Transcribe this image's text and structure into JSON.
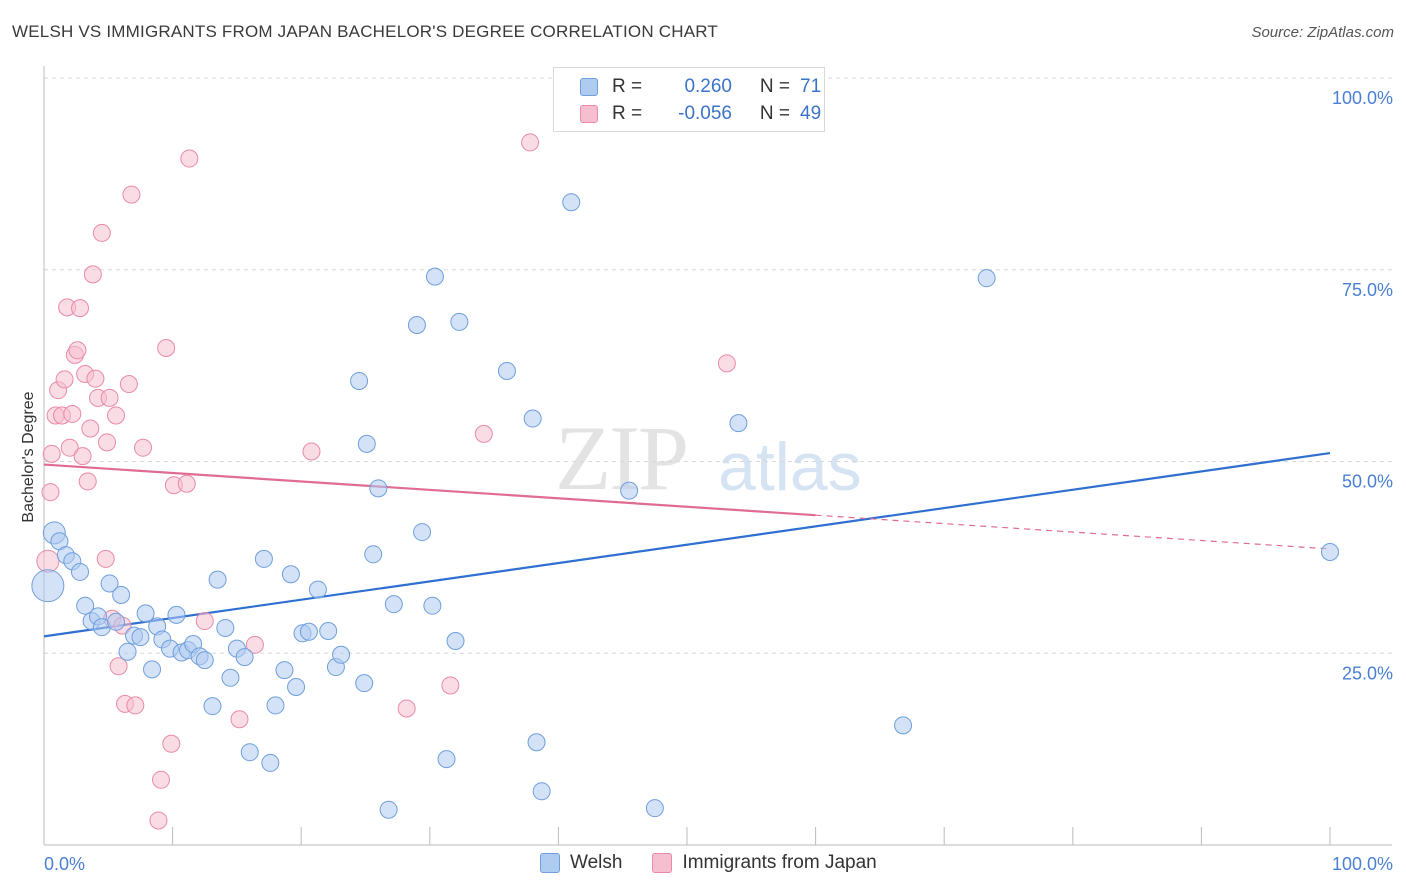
{
  "title": "WELSH VS IMMIGRANTS FROM JAPAN BACHELOR'S DEGREE CORRELATION CHART",
  "source": "Source: ZipAtlas.com",
  "watermark": {
    "zip": "ZIP",
    "atlas": "atlas"
  },
  "legend": {
    "rows": [
      {
        "r_label": "R =",
        "r_value": "0.260",
        "n_label": "N =",
        "n_value": "71"
      },
      {
        "r_label": "R =",
        "r_value": "-0.056",
        "n_label": "N =",
        "n_value": "49"
      }
    ]
  },
  "bottom_legend": {
    "welsh": "Welsh",
    "japan": "Immigrants from Japan"
  },
  "colors": {
    "welsh_fill": "#aecbf0",
    "welsh_stroke": "#6f9fdc",
    "welsh_line": "#2f6fd0",
    "japan_fill": "#f6bfd0",
    "japan_stroke": "#e98aa8",
    "japan_line": "#e06c93",
    "grid": "#d8d8d8",
    "axis_text": "#4a7fd4"
  },
  "chart_data": {
    "type": "scatter",
    "title": "WELSH VS IMMIGRANTS FROM JAPAN BACHELOR'S DEGREE CORRELATION CHART",
    "xlabel": "",
    "ylabel": "Bachelor's Degree",
    "xlim": [
      0,
      100
    ],
    "ylim": [
      0,
      100
    ],
    "x_tick_labels": [
      "0.0%",
      "100.0%"
    ],
    "y_tick_labels": [
      "25.0%",
      "50.0%",
      "75.0%",
      "100.0%"
    ],
    "y_ticks": [
      25,
      50,
      75,
      100
    ],
    "series": [
      {
        "name": "Welsh",
        "r": 0.26,
        "n": 71,
        "trend": {
          "x": [
            0,
            100
          ],
          "y": [
            27.2,
            51.1
          ]
        },
        "points": [
          {
            "x": 0.3,
            "y": 33.8,
            "s": 3
          },
          {
            "x": 0.8,
            "y": 40.7,
            "s": 2
          },
          {
            "x": 1.2,
            "y": 39.6,
            "s": 1
          },
          {
            "x": 1.7,
            "y": 37.8,
            "s": 1
          },
          {
            "x": 2.2,
            "y": 37.0,
            "s": 1
          },
          {
            "x": 2.8,
            "y": 35.6,
            "s": 1
          },
          {
            "x": 3.2,
            "y": 31.2,
            "s": 1
          },
          {
            "x": 3.7,
            "y": 29.2,
            "s": 1
          },
          {
            "x": 4.2,
            "y": 29.8,
            "s": 1
          },
          {
            "x": 4.5,
            "y": 28.4,
            "s": 1
          },
          {
            "x": 5.1,
            "y": 34.1,
            "s": 1
          },
          {
            "x": 5.6,
            "y": 29.1,
            "s": 1
          },
          {
            "x": 6.0,
            "y": 32.6,
            "s": 1
          },
          {
            "x": 6.5,
            "y": 25.2,
            "s": 1
          },
          {
            "x": 7.0,
            "y": 27.3,
            "s": 1
          },
          {
            "x": 7.5,
            "y": 27.1,
            "s": 1
          },
          {
            "x": 7.9,
            "y": 30.2,
            "s": 1
          },
          {
            "x": 8.4,
            "y": 22.9,
            "s": 1
          },
          {
            "x": 8.8,
            "y": 28.5,
            "s": 1
          },
          {
            "x": 9.2,
            "y": 26.8,
            "s": 1
          },
          {
            "x": 9.8,
            "y": 25.6,
            "s": 1
          },
          {
            "x": 10.3,
            "y": 30.0,
            "s": 1
          },
          {
            "x": 10.7,
            "y": 25.1,
            "s": 1
          },
          {
            "x": 11.2,
            "y": 25.4,
            "s": 1
          },
          {
            "x": 11.6,
            "y": 26.2,
            "s": 1
          },
          {
            "x": 12.1,
            "y": 24.6,
            "s": 1
          },
          {
            "x": 12.5,
            "y": 24.1,
            "s": 1
          },
          {
            "x": 13.1,
            "y": 18.1,
            "s": 1
          },
          {
            "x": 13.5,
            "y": 34.6,
            "s": 1
          },
          {
            "x": 14.1,
            "y": 28.3,
            "s": 1
          },
          {
            "x": 14.5,
            "y": 21.8,
            "s": 1
          },
          {
            "x": 15.0,
            "y": 25.6,
            "s": 1
          },
          {
            "x": 15.6,
            "y": 24.5,
            "s": 1
          },
          {
            "x": 16.0,
            "y": 12.1,
            "s": 1
          },
          {
            "x": 17.1,
            "y": 37.3,
            "s": 1
          },
          {
            "x": 17.6,
            "y": 10.7,
            "s": 1
          },
          {
            "x": 18.0,
            "y": 18.2,
            "s": 1
          },
          {
            "x": 18.7,
            "y": 22.8,
            "s": 1
          },
          {
            "x": 19.2,
            "y": 35.3,
            "s": 1
          },
          {
            "x": 19.6,
            "y": 20.6,
            "s": 1
          },
          {
            "x": 20.1,
            "y": 27.6,
            "s": 1
          },
          {
            "x": 20.6,
            "y": 27.8,
            "s": 1
          },
          {
            "x": 21.3,
            "y": 33.3,
            "s": 1
          },
          {
            "x": 22.1,
            "y": 27.9,
            "s": 1
          },
          {
            "x": 22.7,
            "y": 23.2,
            "s": 1
          },
          {
            "x": 23.1,
            "y": 24.8,
            "s": 1
          },
          {
            "x": 24.5,
            "y": 60.5,
            "s": 1
          },
          {
            "x": 24.9,
            "y": 21.1,
            "s": 1
          },
          {
            "x": 25.1,
            "y": 52.3,
            "s": 1
          },
          {
            "x": 25.6,
            "y": 37.9,
            "s": 1
          },
          {
            "x": 26.0,
            "y": 46.5,
            "s": 1
          },
          {
            "x": 26.8,
            "y": 4.6,
            "s": 1
          },
          {
            "x": 27.2,
            "y": 31.4,
            "s": 1
          },
          {
            "x": 29.0,
            "y": 67.8,
            "s": 1
          },
          {
            "x": 29.4,
            "y": 40.8,
            "s": 1
          },
          {
            "x": 30.2,
            "y": 31.2,
            "s": 1
          },
          {
            "x": 30.4,
            "y": 74.1,
            "s": 1
          },
          {
            "x": 31.3,
            "y": 11.2,
            "s": 1
          },
          {
            "x": 32.0,
            "y": 26.6,
            "s": 1
          },
          {
            "x": 32.3,
            "y": 68.2,
            "s": 1
          },
          {
            "x": 36.0,
            "y": 61.8,
            "s": 1
          },
          {
            "x": 38.0,
            "y": 55.6,
            "s": 1
          },
          {
            "x": 38.3,
            "y": 13.4,
            "s": 1
          },
          {
            "x": 38.7,
            "y": 7.0,
            "s": 1
          },
          {
            "x": 41.0,
            "y": 83.8,
            "s": 1
          },
          {
            "x": 45.5,
            "y": 46.2,
            "s": 1
          },
          {
            "x": 47.5,
            "y": 4.8,
            "s": 1
          },
          {
            "x": 54.0,
            "y": 55.0,
            "s": 1
          },
          {
            "x": 66.8,
            "y": 15.6,
            "s": 1
          },
          {
            "x": 73.3,
            "y": 73.9,
            "s": 1
          },
          {
            "x": 100,
            "y": 38.2,
            "s": 1
          }
        ]
      },
      {
        "name": "Immigrants from Japan",
        "r": -0.056,
        "n": 49,
        "trend": {
          "x": [
            0,
            60
          ],
          "y": [
            49.6,
            43.0
          ],
          "dashed_to": {
            "x": 100,
            "y": 38.6
          }
        },
        "points": [
          {
            "x": 0.3,
            "y": 37.0,
            "s": 2
          },
          {
            "x": 0.5,
            "y": 46.0,
            "s": 1
          },
          {
            "x": 0.6,
            "y": 51.0,
            "s": 1
          },
          {
            "x": 0.9,
            "y": 56.0,
            "s": 1
          },
          {
            "x": 1.1,
            "y": 59.3,
            "s": 1
          },
          {
            "x": 1.4,
            "y": 56.0,
            "s": 1
          },
          {
            "x": 1.6,
            "y": 60.7,
            "s": 1
          },
          {
            "x": 1.8,
            "y": 70.1,
            "s": 1
          },
          {
            "x": 2.0,
            "y": 51.8,
            "s": 1
          },
          {
            "x": 2.2,
            "y": 56.2,
            "s": 1
          },
          {
            "x": 2.4,
            "y": 63.9,
            "s": 1
          },
          {
            "x": 2.6,
            "y": 64.5,
            "s": 1
          },
          {
            "x": 2.8,
            "y": 70.0,
            "s": 1
          },
          {
            "x": 3.0,
            "y": 50.7,
            "s": 1
          },
          {
            "x": 3.2,
            "y": 61.4,
            "s": 1
          },
          {
            "x": 3.4,
            "y": 47.4,
            "s": 1
          },
          {
            "x": 3.6,
            "y": 54.3,
            "s": 1
          },
          {
            "x": 3.8,
            "y": 74.4,
            "s": 1
          },
          {
            "x": 4.0,
            "y": 60.8,
            "s": 1
          },
          {
            "x": 4.2,
            "y": 58.3,
            "s": 1
          },
          {
            "x": 4.5,
            "y": 79.8,
            "s": 1
          },
          {
            "x": 4.8,
            "y": 37.3,
            "s": 1
          },
          {
            "x": 4.9,
            "y": 52.5,
            "s": 1
          },
          {
            "x": 5.1,
            "y": 58.3,
            "s": 1
          },
          {
            "x": 5.3,
            "y": 29.5,
            "s": 1
          },
          {
            "x": 5.6,
            "y": 56.0,
            "s": 1
          },
          {
            "x": 5.8,
            "y": 23.3,
            "s": 1
          },
          {
            "x": 6.1,
            "y": 28.6,
            "s": 1
          },
          {
            "x": 6.3,
            "y": 18.4,
            "s": 1
          },
          {
            "x": 6.6,
            "y": 60.1,
            "s": 1
          },
          {
            "x": 6.8,
            "y": 84.8,
            "s": 1
          },
          {
            "x": 7.1,
            "y": 18.2,
            "s": 1
          },
          {
            "x": 7.7,
            "y": 51.8,
            "s": 1
          },
          {
            "x": 8.9,
            "y": 3.2,
            "s": 1
          },
          {
            "x": 9.1,
            "y": 8.5,
            "s": 1
          },
          {
            "x": 9.5,
            "y": 64.8,
            "s": 1
          },
          {
            "x": 9.9,
            "y": 13.2,
            "s": 1
          },
          {
            "x": 10.1,
            "y": 46.9,
            "s": 1
          },
          {
            "x": 11.1,
            "y": 47.1,
            "s": 1
          },
          {
            "x": 11.3,
            "y": 89.5,
            "s": 1
          },
          {
            "x": 12.5,
            "y": 29.2,
            "s": 1
          },
          {
            "x": 15.2,
            "y": 16.4,
            "s": 1
          },
          {
            "x": 16.4,
            "y": 26.1,
            "s": 1
          },
          {
            "x": 20.8,
            "y": 51.3,
            "s": 1
          },
          {
            "x": 28.2,
            "y": 17.8,
            "s": 1
          },
          {
            "x": 31.6,
            "y": 20.8,
            "s": 1
          },
          {
            "x": 34.2,
            "y": 53.6,
            "s": 1
          },
          {
            "x": 37.8,
            "y": 91.6,
            "s": 1
          },
          {
            "x": 53.1,
            "y": 62.8,
            "s": 1
          }
        ]
      }
    ]
  }
}
